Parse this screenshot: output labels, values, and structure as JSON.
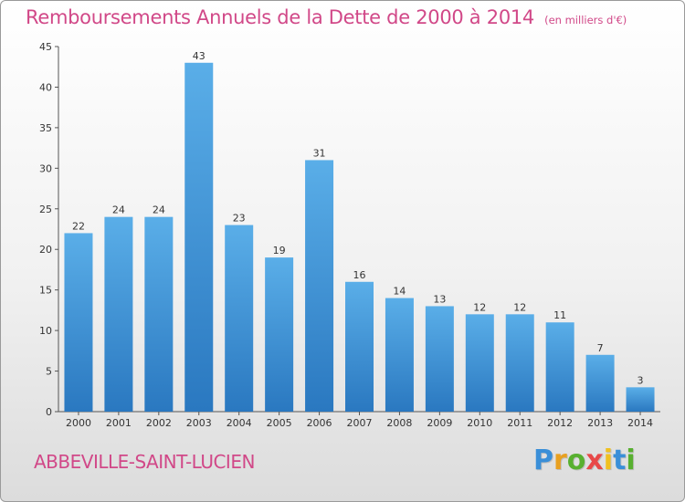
{
  "chart_data": {
    "type": "bar",
    "title": "Remboursements Annuels de la Dette de 2000 à 2014",
    "subtitle": "(en milliers d'€)",
    "categories": [
      "2000",
      "2001",
      "2002",
      "2003",
      "2004",
      "2005",
      "2006",
      "2007",
      "2008",
      "2009",
      "2010",
      "2011",
      "2012",
      "2013",
      "2014"
    ],
    "values": [
      22,
      24,
      24,
      43,
      23,
      19,
      31,
      16,
      14,
      13,
      12,
      12,
      11,
      7,
      3
    ],
    "ylim": [
      0,
      45
    ],
    "yticks": [
      0,
      5,
      10,
      15,
      20,
      25,
      30,
      35,
      40,
      45
    ],
    "grid": false,
    "bar_color_top": "#5aaee8",
    "bar_color_bottom": "#2a78c0"
  },
  "footer": {
    "commune": "ABBEVILLE-SAINT-LUCIEN",
    "brand": "Proxiti",
    "brand_colors": [
      "#3a8fd8",
      "#e8a020",
      "#58b030",
      "#e84848",
      "#f0c020",
      "#3a8fd8",
      "#58b030"
    ]
  }
}
